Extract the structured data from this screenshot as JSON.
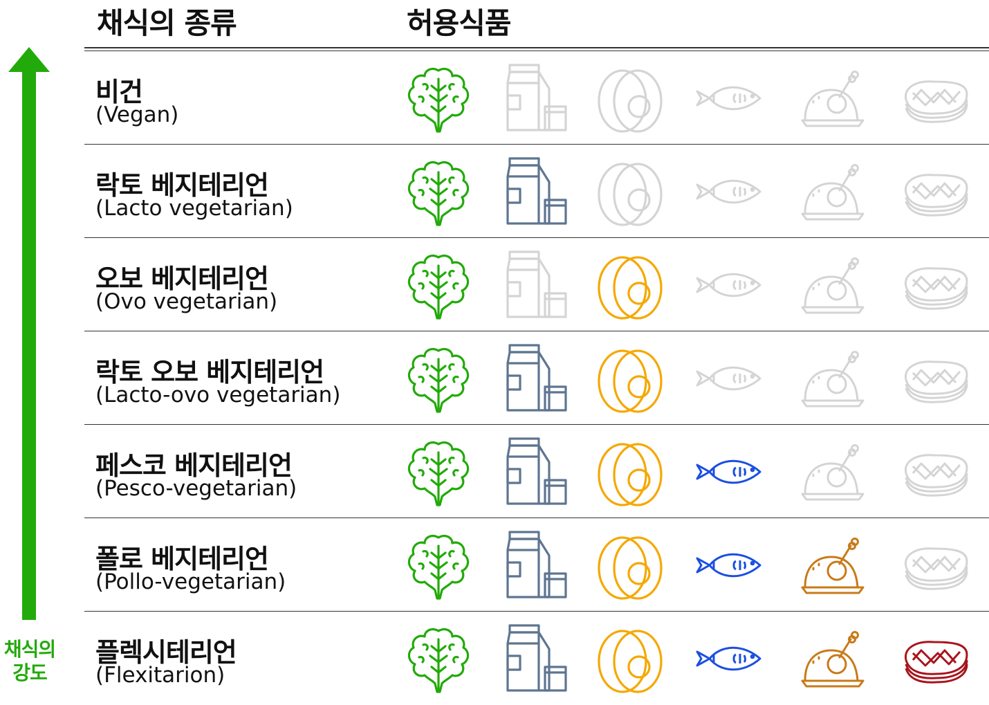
{
  "header": {
    "type_label": "채식의 종류",
    "food_label": "허용식품"
  },
  "side_label": {
    "line1": "채식의",
    "line2": "강도"
  },
  "colors": {
    "off": "#d4d4d4",
    "vegetable": "#22aa0a",
    "milk": "#5e7590",
    "egg": "#f5a800",
    "fish": "#1a4fe0",
    "chicken": "#c87a18",
    "meat": "#a8141c",
    "arrow": "#22aa0a"
  },
  "food_icons": [
    "vegetable-icon",
    "milk-icon",
    "egg-icon",
    "fish-icon",
    "chicken-icon",
    "meat-icon"
  ],
  "rows": [
    {
      "ko": "비건",
      "en": "(Vegan)",
      "allowed": [
        true,
        false,
        false,
        false,
        false,
        false
      ]
    },
    {
      "ko": "락토 베지테리언",
      "en": "(Lacto vegetarian)",
      "allowed": [
        true,
        true,
        false,
        false,
        false,
        false
      ]
    },
    {
      "ko": "오보 베지테리언",
      "en": "(Ovo vegetarian)",
      "allowed": [
        true,
        false,
        true,
        false,
        false,
        false
      ]
    },
    {
      "ko": "락토 오보 베지테리언",
      "en": "(Lacto-ovo vegetarian)",
      "allowed": [
        true,
        true,
        true,
        false,
        false,
        false
      ]
    },
    {
      "ko": "페스코 베지테리언",
      "en": "(Pesco-vegetarian)",
      "allowed": [
        true,
        true,
        true,
        true,
        false,
        false
      ]
    },
    {
      "ko": "폴로 베지테리언",
      "en": "(Pollo-vegetarian)",
      "allowed": [
        true,
        true,
        true,
        true,
        true,
        false
      ]
    },
    {
      "ko": "플렉시테리언",
      "en": "(Flexitarion)",
      "allowed": [
        true,
        true,
        true,
        true,
        true,
        true
      ]
    }
  ]
}
